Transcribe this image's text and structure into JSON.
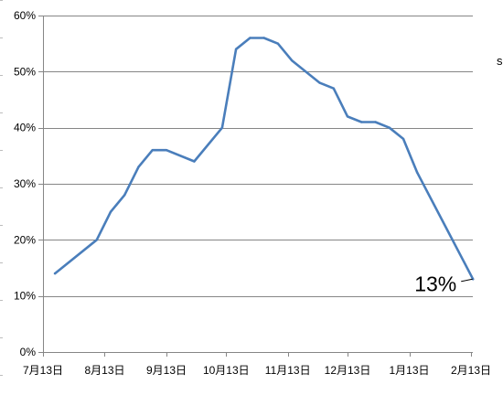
{
  "chart_data": {
    "type": "line",
    "x_ticks": [
      "7月13日",
      "8月13日",
      "9月13日",
      "10月13日",
      "11月13日",
      "12月13日",
      "1月13日",
      "2月13日"
    ],
    "y_ticks": [
      "0%",
      "10%",
      "20%",
      "30%",
      "40%",
      "50%",
      "60%"
    ],
    "ylim": [
      0,
      60
    ],
    "grid": true,
    "series": [
      {
        "color": "#4a7ebb",
        "points": [
          {
            "month": 7,
            "day": 19,
            "y": 14
          },
          {
            "month": 8,
            "day": 9,
            "y": 20
          },
          {
            "month": 8,
            "day": 16,
            "y": 25
          },
          {
            "month": 8,
            "day": 23,
            "y": 28
          },
          {
            "month": 8,
            "day": 30,
            "y": 33
          },
          {
            "month": 9,
            "day": 6,
            "y": 36
          },
          {
            "month": 9,
            "day": 13,
            "y": 36
          },
          {
            "month": 9,
            "day": 27,
            "y": 34
          },
          {
            "month": 10,
            "day": 11,
            "y": 40
          },
          {
            "month": 10,
            "day": 18,
            "y": 54
          },
          {
            "month": 10,
            "day": 25,
            "y": 56
          },
          {
            "month": 11,
            "day": 1,
            "y": 56
          },
          {
            "month": 11,
            "day": 8,
            "y": 55
          },
          {
            "month": 11,
            "day": 15,
            "y": 52
          },
          {
            "month": 11,
            "day": 29,
            "y": 48
          },
          {
            "month": 12,
            "day": 6,
            "y": 47
          },
          {
            "month": 12,
            "day": 13,
            "y": 42
          },
          {
            "month": 12,
            "day": 20,
            "y": 41
          },
          {
            "month": 12,
            "day": 27,
            "y": 41
          },
          {
            "month": 1,
            "day": 3,
            "y": 40
          },
          {
            "month": 1,
            "day": 10,
            "y": 38
          },
          {
            "month": 1,
            "day": 17,
            "y": 32
          },
          {
            "month": 2,
            "day": 14,
            "y": 13
          }
        ]
      }
    ],
    "annotations": [
      {
        "text": "13%",
        "month": 2,
        "day": 14,
        "y": 13
      }
    ]
  },
  "edge_fragment": "s",
  "colors": {
    "background": "#ffffff",
    "gridline": "#868686",
    "axis": "#868686",
    "text": "#000000",
    "edge_dashes": "#bdbdbd"
  }
}
